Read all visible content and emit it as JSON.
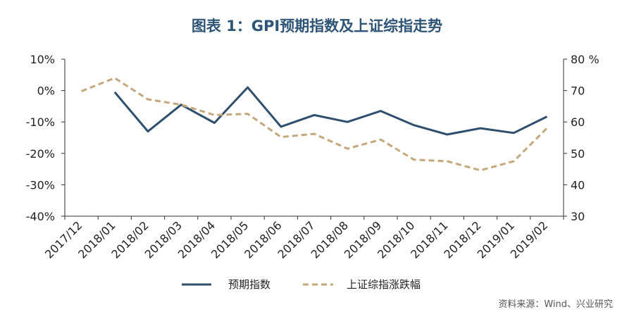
{
  "chart_data": {
    "type": "line",
    "title": "图表 1：GPI预期指数及上证综指走势",
    "categories": [
      "2017/12",
      "2018/01",
      "2018/02",
      "2018/03",
      "2018/04",
      "2018/05",
      "2018/06",
      "2018/07",
      "2018/08",
      "2018/09",
      "2018/10",
      "2018/11",
      "2018/12",
      "2019/01",
      "2019/02"
    ],
    "y_left": {
      "ticks": [
        "10%",
        "0%",
        "-10%",
        "-20%",
        "-30%",
        "-40%"
      ],
      "ylim": [
        -40,
        10
      ]
    },
    "y_right": {
      "ticks": [
        "80 %",
        "70",
        "60",
        "50",
        "40",
        "30"
      ],
      "ylim": [
        30,
        80
      ]
    },
    "series": [
      {
        "name": "预期指数",
        "axis": "left",
        "color": "#2e4f6e",
        "style": "solid",
        "values": [
          null,
          -0.5,
          -13,
          -4.5,
          -10.3,
          1,
          -11.5,
          -7.8,
          -10,
          -6.5,
          -11,
          -14,
          -12,
          -13.5,
          -8.3
        ]
      },
      {
        "name": "上证综指涨跌幅",
        "axis": "right",
        "color": "#c4a77a",
        "style": "dashed",
        "values": [
          69.8,
          74,
          67.2,
          65.5,
          62.2,
          62.6,
          55.2,
          56.2,
          51.5,
          54.4,
          48,
          47.5,
          44.6,
          47.5,
          58
        ]
      }
    ],
    "legend_position": "bottom",
    "grid": false,
    "source": "资料来源：Wind、兴业研究"
  }
}
